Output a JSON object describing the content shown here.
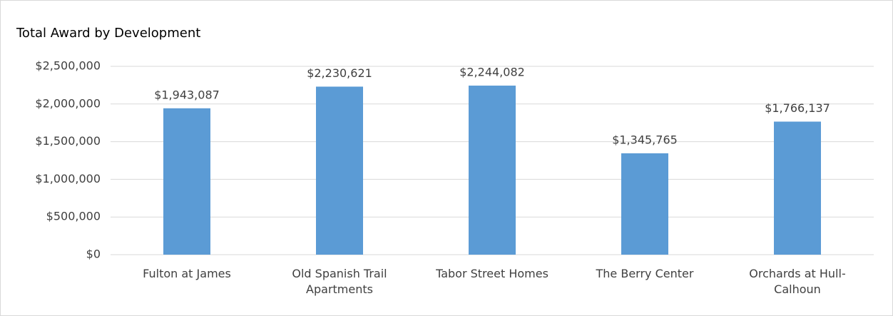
{
  "chart_data": {
    "type": "bar",
    "title": "Total Award by Development",
    "categories": [
      "Fulton at James",
      "Old Spanish Trail Apartments",
      "Tabor Street Homes",
      "The Berry Center",
      "Orchards at Hull-Calhoun"
    ],
    "values": [
      1943087,
      2230621,
      2244082,
      1345765,
      1766137
    ],
    "value_labels": [
      "$1,943,087",
      "$2,230,621",
      "$2,244,082",
      "$1,345,765",
      "$1,766,137"
    ],
    "color": "#5b9bd5",
    "ylim": [
      0,
      2500000
    ],
    "yticks": [
      {
        "value": 0,
        "label": "$0"
      },
      {
        "value": 500000,
        "label": "$500,000"
      },
      {
        "value": 1000000,
        "label": "$1,000,000"
      },
      {
        "value": 1500000,
        "label": "$1,500,000"
      },
      {
        "value": 2000000,
        "label": "$2,000,000"
      },
      {
        "value": 2500000,
        "label": "$2,500,000"
      }
    ],
    "grid": true
  }
}
